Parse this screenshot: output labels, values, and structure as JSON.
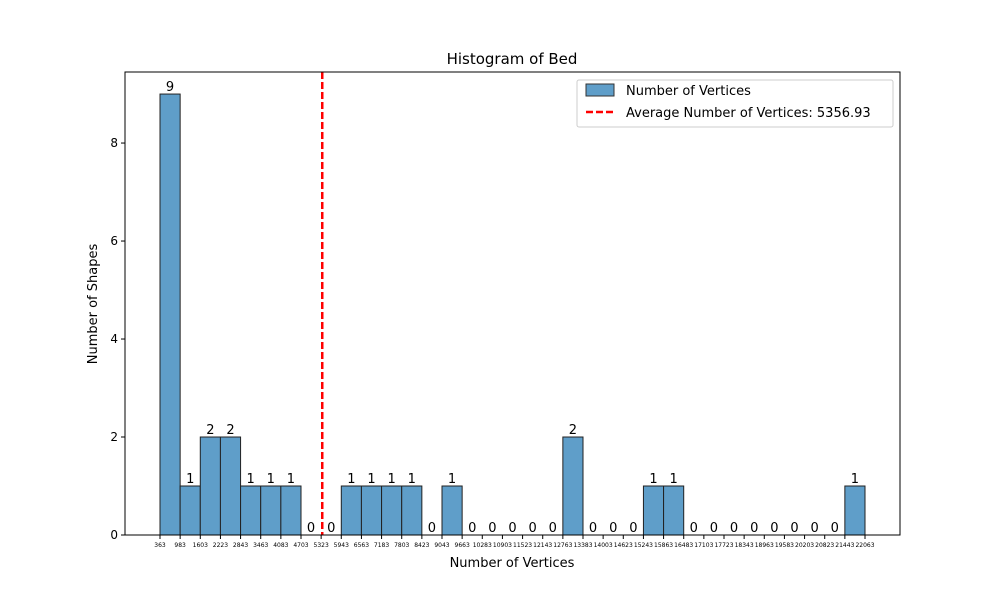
{
  "chart_data": {
    "type": "bar",
    "title": "Histogram of Bed",
    "xlabel": "Number of Vertices",
    "ylabel": "Number of Shapes",
    "ylim": [
      0,
      9.45
    ],
    "yticks": [
      0,
      2,
      4,
      6,
      8
    ],
    "bin_edges": [
      363,
      983,
      1603,
      2223,
      2843,
      3463,
      4083,
      4703,
      5323,
      5943,
      6563,
      7183,
      7803,
      8423,
      9043,
      9663,
      10283,
      10903,
      11523,
      12143,
      12763,
      13383,
      14003,
      14623,
      15243,
      15863,
      16483,
      17103,
      17723,
      18343,
      18963,
      19583,
      20203,
      20823,
      21443,
      22063
    ],
    "values": [
      9,
      1,
      2,
      2,
      1,
      1,
      1,
      0,
      0,
      1,
      1,
      1,
      1,
      0,
      1,
      0,
      0,
      0,
      0,
      0,
      2,
      0,
      0,
      0,
      1,
      1,
      0,
      0,
      0,
      0,
      0,
      0,
      0,
      0,
      1
    ],
    "average_line": {
      "value": 5356.93,
      "color": "#ff0000"
    },
    "bar_color": "#5f9ec9",
    "legend": {
      "position": "top-right",
      "entries": [
        "Number of Vertices",
        "Average Number of Vertices: 5356.93"
      ]
    },
    "grid": false
  }
}
